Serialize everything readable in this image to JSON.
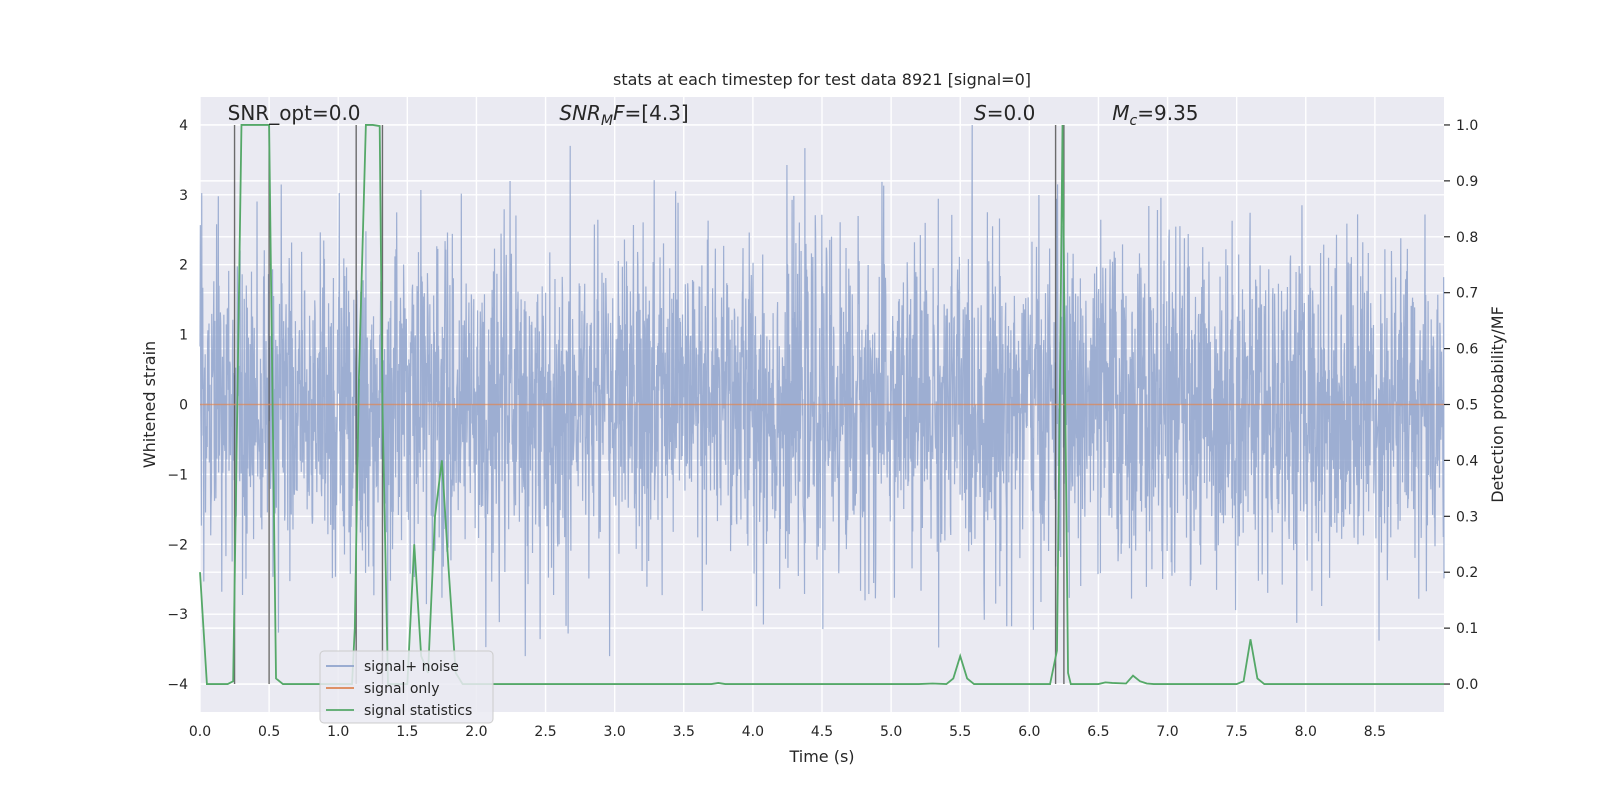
{
  "chart_data": {
    "type": "line",
    "title": "stats at each timestep for test data 8921 [signal=0]",
    "xlabel": "Time (s)",
    "ylabel": "Whitened strain",
    "y2label": "Detection probability/MF",
    "xlim": [
      0.0,
      9.0
    ],
    "ylim": [
      -4.4,
      4.4
    ],
    "y2lim": [
      -0.05,
      1.05
    ],
    "xticks": [
      "0.0",
      "0.5",
      "1.0",
      "1.5",
      "2.0",
      "2.5",
      "3.0",
      "3.5",
      "4.0",
      "4.5",
      "5.0",
      "5.5",
      "6.0",
      "6.5",
      "7.0",
      "7.5",
      "8.0",
      "8.5"
    ],
    "yticks": [
      "−4",
      "−3",
      "−2",
      "−1",
      "0",
      "1",
      "2",
      "3",
      "4"
    ],
    "y2ticks": [
      "0.0",
      "0.1",
      "0.2",
      "0.3",
      "0.4",
      "0.5",
      "0.6",
      "0.7",
      "0.8",
      "0.9",
      "1.0"
    ],
    "grid": true,
    "legend_position": "lower-left",
    "annotations": [
      {
        "text": "SNR_opt=0.0",
        "x": 0.2,
        "y": 4.1
      },
      {
        "text": "SNR_MF=[4.3]",
        "x": 2.6,
        "y": 4.1
      },
      {
        "text": "S=0.0",
        "x": 5.6,
        "y": 4.1
      },
      {
        "text": "M_c=9.35",
        "x": 6.6,
        "y": 4.1
      }
    ],
    "series": [
      {
        "name": "signal+ noise",
        "color": "#8fa3cc",
        "description": "whitened noise trace, approx. Gaussian, sampled densely across 0–9 s",
        "amplitude_range": [
          -3.5,
          4.0
        ]
      },
      {
        "name": "signal only",
        "color": "#dd8452",
        "y_constant": 0.0
      },
      {
        "name": "signal statistics",
        "color": "#55a868",
        "axis": "right",
        "x": [
          0.0,
          0.05,
          0.1,
          0.15,
          0.2,
          0.24,
          0.27,
          0.3,
          0.35,
          0.45,
          0.5,
          0.55,
          0.6,
          0.7,
          1.0,
          1.1,
          1.12,
          1.15,
          1.2,
          1.25,
          1.3,
          1.32,
          1.36,
          1.4,
          1.5,
          1.55,
          1.6,
          1.65,
          1.7,
          1.75,
          1.8,
          1.85,
          1.9,
          2.0,
          3.0,
          3.7,
          3.75,
          3.8,
          4.0,
          5.0,
          5.2,
          5.3,
          5.4,
          5.45,
          5.5,
          5.55,
          5.6,
          6.0,
          6.15,
          6.2,
          6.22,
          6.24,
          6.26,
          6.28,
          6.3,
          6.35,
          6.5,
          6.55,
          6.6,
          6.7,
          6.75,
          6.8,
          6.85,
          6.9,
          7.0,
          7.5,
          7.55,
          7.6,
          7.65,
          7.7,
          7.75,
          8.0,
          9.0
        ],
        "y": [
          0.2,
          0.0,
          0.0,
          0.0,
          0.0,
          0.005,
          0.5,
          1.0,
          1.0,
          1.0,
          1.0,
          0.01,
          0.0,
          0.0,
          0.0,
          0.0,
          0.1,
          0.55,
          1.0,
          1.0,
          0.998,
          0.5,
          0.0,
          0.0,
          0.0,
          0.25,
          0.05,
          0.02,
          0.3,
          0.4,
          0.2,
          0.02,
          0.0,
          0.0,
          0.0,
          0.0,
          0.002,
          0.0,
          0.0,
          0.0,
          0.0,
          0.001,
          0.0,
          0.01,
          0.05,
          0.01,
          0.0,
          0.0,
          0.0,
          0.06,
          0.5,
          1.0,
          0.5,
          0.02,
          0.0,
          0.0,
          0.0,
          0.003,
          0.002,
          0.001,
          0.015,
          0.005,
          0.001,
          0.0,
          0.0,
          0.0,
          0.005,
          0.08,
          0.01,
          0.0,
          0.0,
          0.0,
          0.0
        ]
      }
    ],
    "vertical_markers": [
      0.25,
      0.5,
      1.13,
      1.32,
      6.19,
      6.25
    ]
  }
}
